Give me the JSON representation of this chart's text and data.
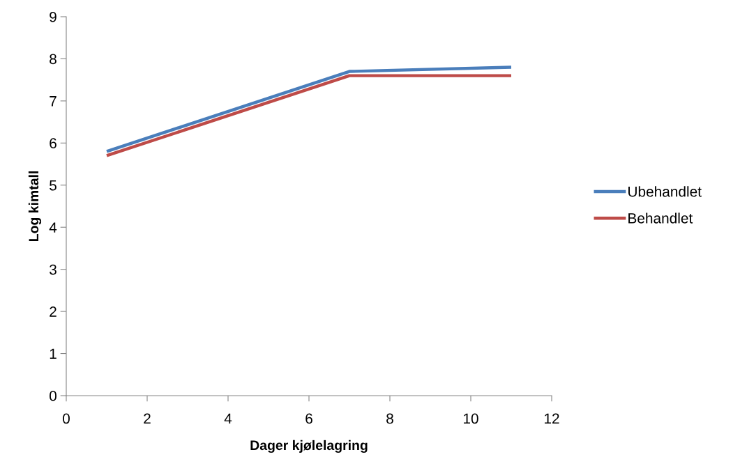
{
  "chart_data": {
    "type": "line",
    "xlabel": "Dager kjølelagring",
    "ylabel": "Log kimtall",
    "series": [
      {
        "name": "Ubehandlet",
        "color": "#4a7ebb",
        "x": [
          1,
          7,
          11
        ],
        "values": [
          5.8,
          7.7,
          7.8
        ]
      },
      {
        "name": "Behandlet",
        "color": "#be4b48",
        "x": [
          1,
          7,
          11
        ],
        "values": [
          5.7,
          7.6,
          7.6
        ]
      }
    ],
    "xlim": [
      0,
      12
    ],
    "xticks": [
      0,
      2,
      4,
      6,
      8,
      10,
      12
    ],
    "ylim": [
      0,
      9
    ],
    "yticks": [
      0,
      1,
      2,
      3,
      4,
      5,
      6,
      7,
      8,
      9
    ],
    "grid": false,
    "legend": "right",
    "marker": "none",
    "line_style": "solid"
  }
}
